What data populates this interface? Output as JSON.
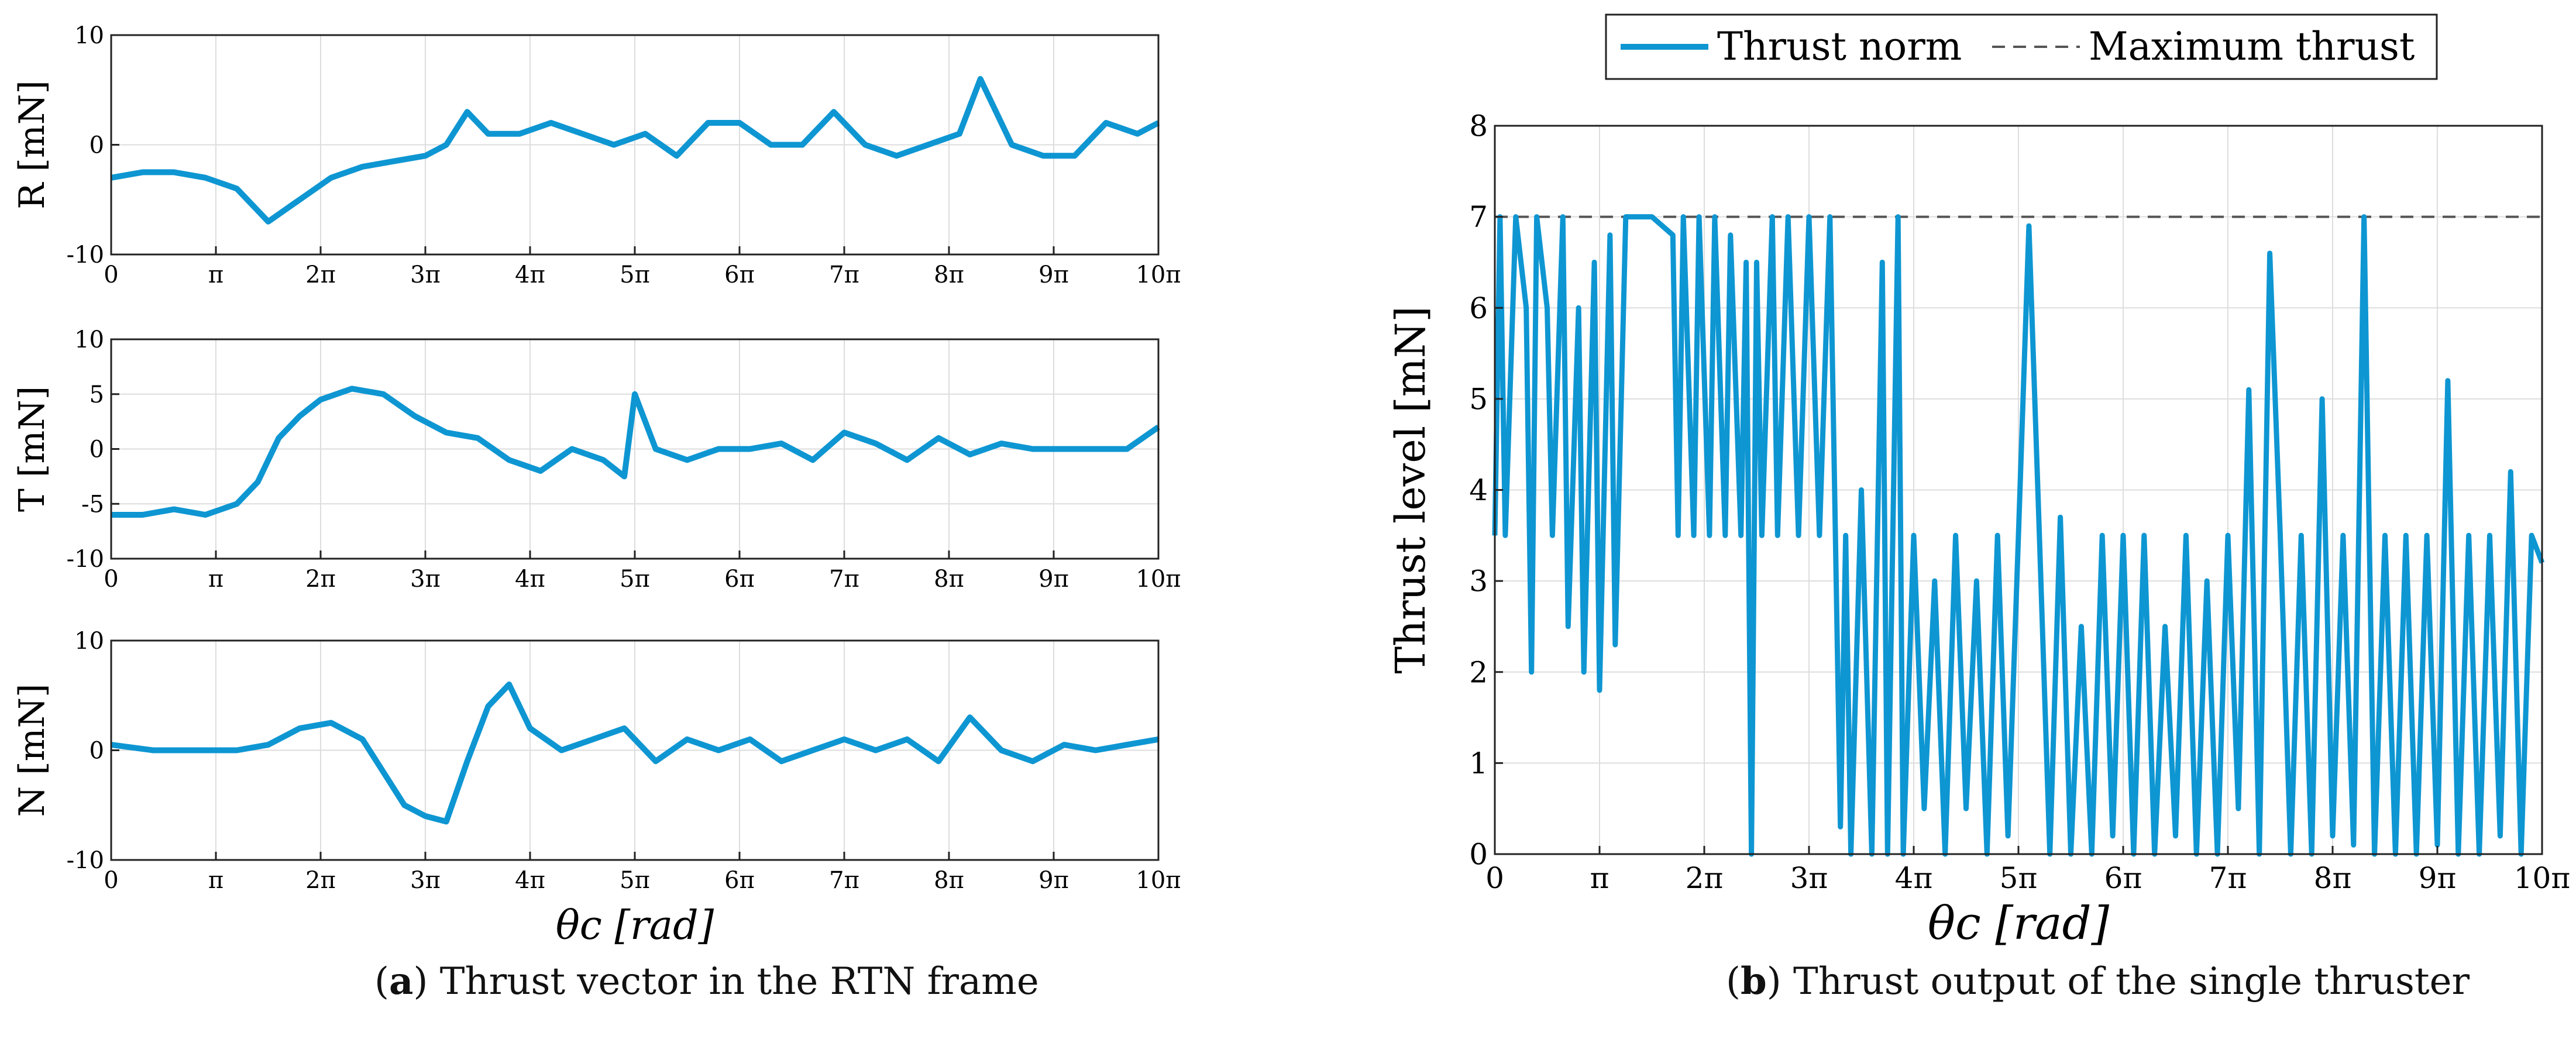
{
  "style": {
    "line_color": "#0e96d2",
    "max_line_color": "#555555",
    "grid_color": "#dddddd"
  },
  "captions": {
    "a": {
      "label": "a",
      "text": "Thrust vector in the RTN frame"
    },
    "b": {
      "label": "b",
      "text": "Thrust output of the single thruster"
    }
  },
  "chart_data": [
    {
      "type": "line",
      "ylabel": "R [mN]",
      "xlabel": "",
      "xlim": [
        0,
        10
      ],
      "ylim": [
        -10,
        10
      ],
      "x_unit": "π",
      "x_ticks": [
        0,
        1,
        2,
        3,
        4,
        5,
        6,
        7,
        8,
        9,
        10
      ],
      "x_tick_labels": [
        "0",
        "π",
        "2π",
        "3π",
        "4π",
        "5π",
        "6π",
        "7π",
        "8π",
        "9π",
        "10π"
      ],
      "y_ticks": [
        -10,
        0,
        10
      ],
      "y_tick_labels": [
        "-10",
        "0",
        "10"
      ],
      "grid": true,
      "series": [
        {
          "x": [
            0,
            0.3,
            0.6,
            0.9,
            1.2,
            1.5,
            1.8,
            2.1,
            2.4,
            2.7,
            3.0,
            3.2,
            3.4,
            3.6,
            3.9,
            4.2,
            4.5,
            4.8,
            5.1,
            5.4,
            5.7,
            6.0,
            6.3,
            6.6,
            6.9,
            7.2,
            7.5,
            7.8,
            8.1,
            8.3,
            8.6,
            8.9,
            9.2,
            9.5,
            9.8,
            10
          ],
          "y": [
            -3,
            -2.5,
            -2.5,
            -3,
            -4,
            -7,
            -5,
            -3,
            -2,
            -1.5,
            -1,
            0,
            3,
            1,
            1,
            2,
            1,
            0,
            1,
            -1,
            2,
            2,
            0,
            0,
            3,
            0,
            -1,
            0,
            1,
            6,
            0,
            -1,
            -1,
            2,
            1,
            2
          ]
        }
      ]
    },
    {
      "type": "line",
      "ylabel": "T [mN]",
      "xlabel": "",
      "xlim": [
        0,
        10
      ],
      "ylim": [
        -10,
        10
      ],
      "x_unit": "π",
      "x_ticks": [
        0,
        1,
        2,
        3,
        4,
        5,
        6,
        7,
        8,
        9,
        10
      ],
      "x_tick_labels": [
        "0",
        "π",
        "2π",
        "3π",
        "4π",
        "5π",
        "6π",
        "7π",
        "8π",
        "9π",
        "10π"
      ],
      "y_ticks": [
        -10,
        -5,
        0,
        5,
        10
      ],
      "y_tick_labels": [
        "-10",
        "-5",
        "0",
        "5",
        "10"
      ],
      "grid": true,
      "series": [
        {
          "x": [
            0,
            0.3,
            0.6,
            0.9,
            1.2,
            1.4,
            1.6,
            1.8,
            2.0,
            2.3,
            2.6,
            2.9,
            3.2,
            3.5,
            3.8,
            4.1,
            4.4,
            4.7,
            4.9,
            5.0,
            5.2,
            5.5,
            5.8,
            6.1,
            6.4,
            6.7,
            7.0,
            7.3,
            7.6,
            7.9,
            8.2,
            8.5,
            8.8,
            9.1,
            9.4,
            9.7,
            10
          ],
          "y": [
            -6,
            -6,
            -5.5,
            -6,
            -5,
            -3,
            1,
            3,
            4.5,
            5.5,
            5,
            3,
            1.5,
            1,
            -1,
            -2,
            0,
            -1,
            -2.5,
            5,
            0,
            -1,
            0,
            0,
            0.5,
            -1,
            1.5,
            0.5,
            -1,
            1,
            -0.5,
            0.5,
            0,
            0,
            0,
            0,
            2
          ]
        }
      ]
    },
    {
      "type": "line",
      "ylabel": "N [mN]",
      "xlabel": "θc [rad]",
      "xlim": [
        0,
        10
      ],
      "ylim": [
        -10,
        10
      ],
      "x_unit": "π",
      "x_ticks": [
        0,
        1,
        2,
        3,
        4,
        5,
        6,
        7,
        8,
        9,
        10
      ],
      "x_tick_labels": [
        "0",
        "π",
        "2π",
        "3π",
        "4π",
        "5π",
        "6π",
        "7π",
        "8π",
        "9π",
        "10π"
      ],
      "y_ticks": [
        -10,
        0,
        10
      ],
      "y_tick_labels": [
        "-10",
        "0",
        "10"
      ],
      "grid": true,
      "series": [
        {
          "x": [
            0,
            0.4,
            0.8,
            1.2,
            1.5,
            1.8,
            2.1,
            2.4,
            2.6,
            2.8,
            3.0,
            3.2,
            3.4,
            3.6,
            3.8,
            4.0,
            4.3,
            4.6,
            4.9,
            5.2,
            5.5,
            5.8,
            6.1,
            6.4,
            6.7,
            7.0,
            7.3,
            7.6,
            7.9,
            8.2,
            8.5,
            8.8,
            9.1,
            9.4,
            9.7,
            10
          ],
          "y": [
            0.5,
            0,
            0,
            0,
            0.5,
            2,
            2.5,
            1,
            -2,
            -5,
            -6,
            -6.5,
            -1,
            4,
            6,
            2,
            0,
            1,
            2,
            -1,
            1,
            0,
            1,
            -1,
            0,
            1,
            0,
            1,
            -1,
            3,
            0,
            -1,
            0.5,
            0,
            0.5,
            1
          ]
        }
      ]
    },
    {
      "type": "line",
      "ylabel": "Thrust level [mN]",
      "xlabel": "θc [rad]",
      "xlim": [
        0,
        10
      ],
      "ylim": [
        0,
        8
      ],
      "x_unit": "π",
      "x_ticks": [
        0,
        1,
        2,
        3,
        4,
        5,
        6,
        7,
        8,
        9,
        10
      ],
      "x_tick_labels": [
        "0",
        "π",
        "2π",
        "3π",
        "4π",
        "5π",
        "6π",
        "7π",
        "8π",
        "9π",
        "10π"
      ],
      "y_ticks": [
        0,
        1,
        2,
        3,
        4,
        5,
        6,
        7,
        8
      ],
      "y_tick_labels": [
        "0",
        "1",
        "2",
        "3",
        "4",
        "5",
        "6",
        "7",
        "8"
      ],
      "grid": true,
      "legend": {
        "placement": "top-center-outside",
        "entries": [
          "Thrust norm",
          "Maximum thrust"
        ]
      },
      "max_thrust": 7,
      "series": [
        {
          "name": "Thrust norm",
          "x": [
            0,
            0.05,
            0.1,
            0.2,
            0.3,
            0.35,
            0.4,
            0.5,
            0.55,
            0.65,
            0.7,
            0.8,
            0.85,
            0.95,
            1.0,
            1.1,
            1.15,
            1.25,
            1.3,
            1.4,
            1.5,
            1.6,
            1.7,
            1.75,
            1.8,
            1.9,
            1.95,
            2.05,
            2.1,
            2.2,
            2.25,
            2.35,
            2.4,
            2.45,
            2.5,
            2.55,
            2.65,
            2.7,
            2.8,
            2.9,
            3.0,
            3.1,
            3.2,
            3.3,
            3.35,
            3.4,
            3.5,
            3.6,
            3.7,
            3.75,
            3.85,
            3.9,
            4.0,
            4.1,
            4.2,
            4.3,
            4.4,
            4.5,
            4.6,
            4.7,
            4.8,
            4.9,
            5.0,
            5.1,
            5.2,
            5.3,
            5.4,
            5.5,
            5.6,
            5.7,
            5.8,
            5.9,
            6.0,
            6.1,
            6.2,
            6.3,
            6.4,
            6.5,
            6.6,
            6.7,
            6.8,
            6.9,
            7.0,
            7.1,
            7.2,
            7.3,
            7.4,
            7.5,
            7.6,
            7.7,
            7.8,
            7.9,
            8.0,
            8.1,
            8.2,
            8.3,
            8.4,
            8.5,
            8.6,
            8.7,
            8.8,
            8.9,
            9.0,
            9.1,
            9.2,
            9.3,
            9.4,
            9.5,
            9.6,
            9.7,
            9.8,
            9.9,
            10
          ],
          "y": [
            3.5,
            7,
            3.5,
            7,
            6,
            2,
            7,
            6,
            3.5,
            7,
            2.5,
            6,
            2,
            6.5,
            1.8,
            6.8,
            2.3,
            7,
            7,
            7,
            7,
            6.9,
            6.8,
            3.5,
            7,
            3.5,
            7,
            3.5,
            7,
            3.5,
            6.8,
            3.5,
            6.5,
            0,
            6.5,
            3.5,
            7,
            3.5,
            7,
            3.5,
            7,
            3.5,
            7,
            0.3,
            3.5,
            0,
            4,
            0,
            6.5,
            0,
            7,
            0,
            3.5,
            0.5,
            3,
            0,
            3.5,
            0.5,
            3,
            0,
            3.5,
            0.2,
            3.5,
            6.9,
            3.5,
            0,
            3.7,
            0,
            2.5,
            0,
            3.5,
            0.2,
            3.5,
            0,
            3.5,
            0,
            2.5,
            0.2,
            3.5,
            0,
            3,
            0,
            3.5,
            0.5,
            5.1,
            0,
            6.6,
            3.5,
            0,
            3.5,
            0,
            5,
            0.2,
            3.5,
            0.1,
            7,
            0,
            3.5,
            0,
            3.5,
            0,
            3.5,
            0.1,
            5.2,
            0,
            3.5,
            0,
            3.5,
            0.2,
            4.2,
            0,
            3.5,
            3.2
          ]
        }
      ]
    }
  ]
}
